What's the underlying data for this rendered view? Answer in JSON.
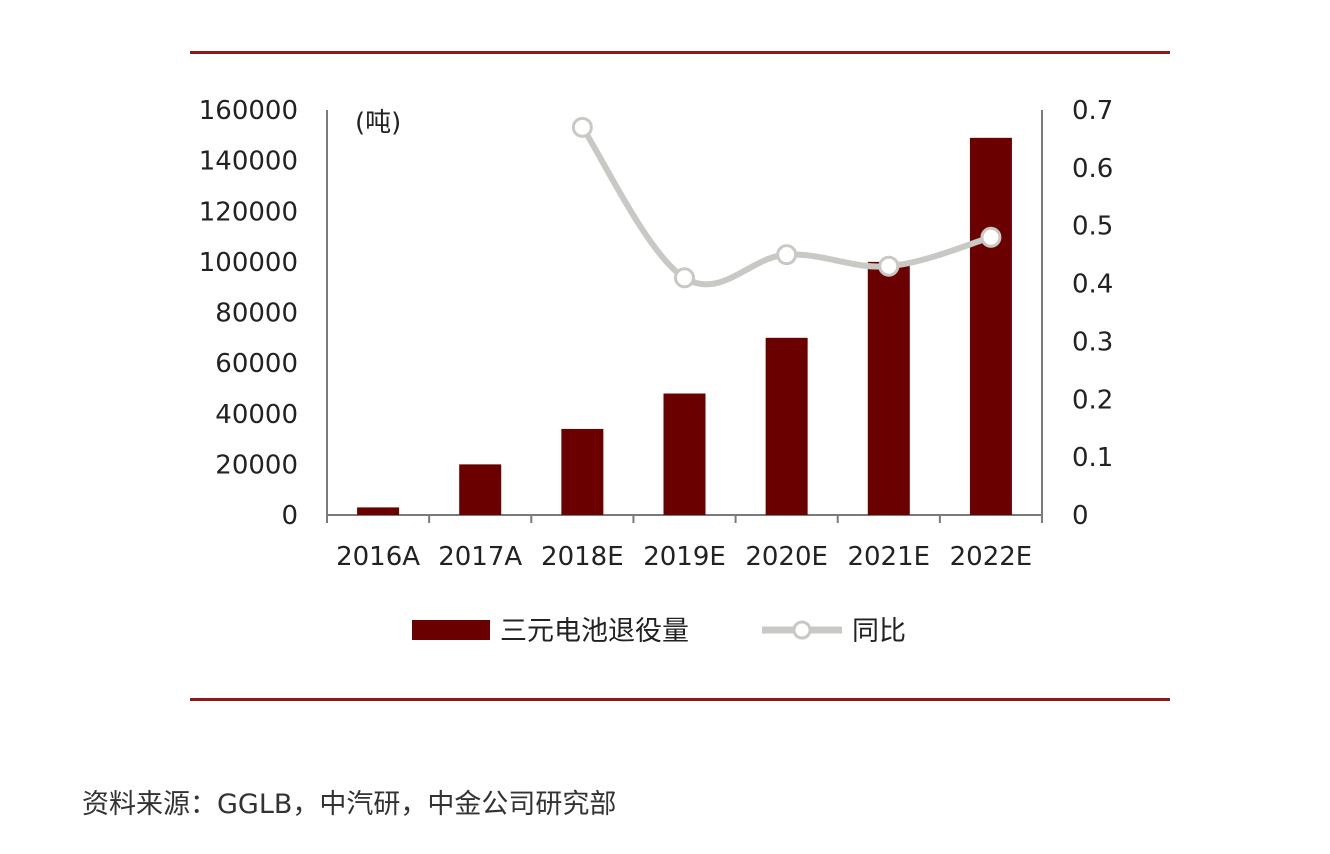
{
  "chart_data": {
    "type": "bar",
    "categories": [
      "2016A",
      "2017A",
      "2018E",
      "2019E",
      "2020E",
      "2021E",
      "2022E"
    ],
    "series": [
      {
        "name": "三元电池退役量",
        "type": "bar",
        "axis": "left",
        "values": [
          3000,
          20000,
          34000,
          48000,
          70000,
          100000,
          149000
        ]
      },
      {
        "name": "同比",
        "type": "line",
        "axis": "right",
        "values": [
          null,
          null,
          0.67,
          0.41,
          0.45,
          0.43,
          0.48
        ]
      }
    ],
    "y_left": {
      "label": "(吨)",
      "ylim": [
        0,
        160000
      ],
      "ticks": [
        "0",
        "20000",
        "40000",
        "60000",
        "80000",
        "100000",
        "120000",
        "140000",
        "160000"
      ]
    },
    "y_right": {
      "ylim": [
        0,
        0.7
      ],
      "ticks": [
        "0",
        "0.1",
        "0.2",
        "0.3",
        "0.4",
        "0.5",
        "0.6",
        "0.7"
      ]
    },
    "legend_position": "bottom",
    "grid": false,
    "colors": {
      "bar": "#6b0000",
      "line": "#c8c8c4",
      "marker_fill": "#ffffff",
      "axis": "#7a7a7a",
      "rule": "#8b1a1a"
    }
  },
  "source": "资料来源：GGLB，中汽研，中金公司研究部"
}
